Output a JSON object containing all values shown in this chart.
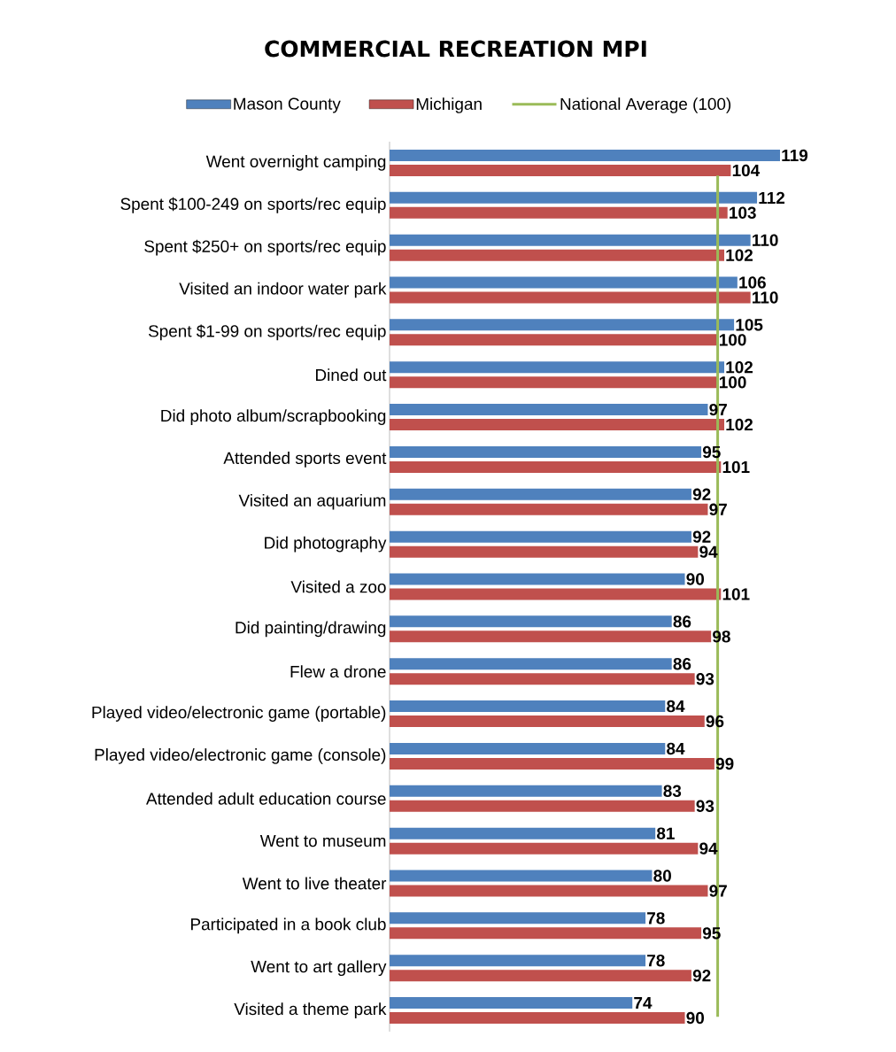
{
  "chart_data": {
    "type": "bar",
    "orientation": "horizontal",
    "title": "COMMERCIAL RECREATION MPI",
    "categories": [
      "Went overnight camping",
      "Spent $100-249 on sports/rec equip",
      "Spent  $250+ on sports/rec equip",
      "Visited an indoor water park",
      "Spent  $1-99 on sports/rec equip",
      "Dined out",
      "Did photo album/scrapbooking",
      "Attended sports event",
      "Visited an aquarium",
      "Did photography",
      "Visited a zoo",
      "Did painting/drawing",
      "Flew a drone",
      "Played video/electronic game (portable)",
      "Played video/electronic game (console)",
      "Attended adult education course",
      "Went to museum",
      "Went to live theater",
      "Participated in a book club",
      "Went to art gallery",
      "Visited a theme park"
    ],
    "series": [
      {
        "name": "Mason County",
        "color": "#4f81bd",
        "values": [
          119,
          112,
          110,
          106,
          105,
          102,
          97,
          95,
          92,
          92,
          90,
          86,
          86,
          84,
          84,
          83,
          81,
          80,
          78,
          78,
          74
        ]
      },
      {
        "name": "Michigan",
        "color": "#c0504d",
        "values": [
          104,
          103,
          102,
          110,
          100,
          100,
          102,
          101,
          97,
          94,
          101,
          98,
          93,
          96,
          99,
          93,
          94,
          97,
          95,
          92,
          90
        ]
      }
    ],
    "tick_labels": "y",
    "ref_lines": [
      {
        "axis": "x",
        "value": 100,
        "label": "National Average (100)",
        "color": "#9bbb59"
      }
    ],
    "data_labels": true,
    "legend": "top"
  }
}
